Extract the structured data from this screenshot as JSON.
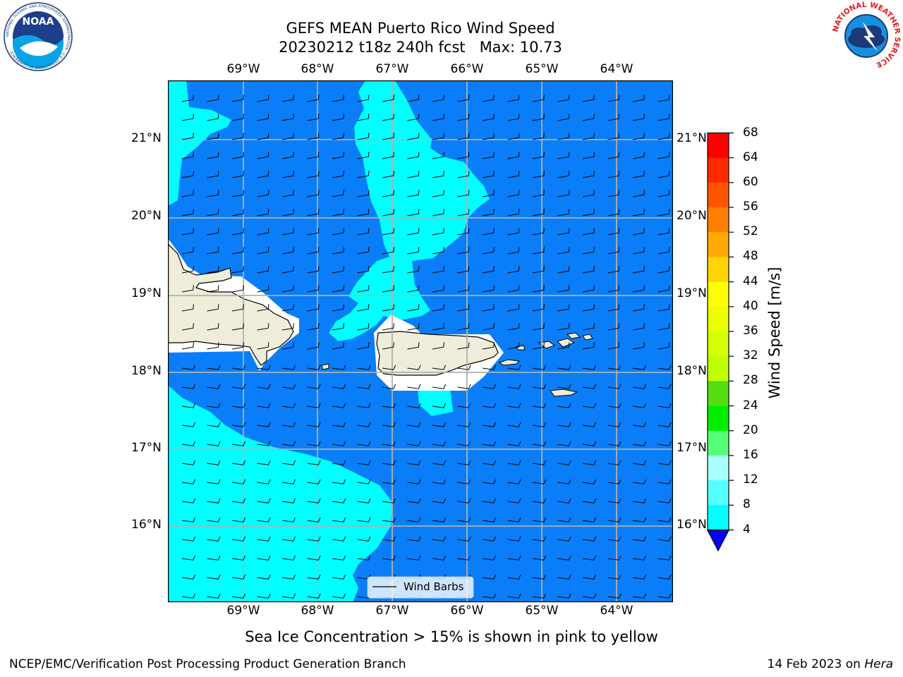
{
  "header": {
    "title_line1": "GEFS MEAN Puerto Rico Wind Speed",
    "title_line2": "20230212 t18z 240h fcst   Max: 10.73",
    "left_logo": "NOAA",
    "left_logo_ring_text": "NATIONAL OCEANIC AND ATMOSPHERIC ADMINISTRATION · U.S. DEPARTMENT OF COMMERCE",
    "right_logo_ring_text": "NATIONAL WEATHER SERVICE"
  },
  "map": {
    "lon_labels": [
      "69°W",
      "68°W",
      "67°W",
      "66°W",
      "65°W",
      "64°W"
    ],
    "lat_labels": [
      "21°N",
      "20°N",
      "19°N",
      "18°N",
      "17°N",
      "16°N"
    ],
    "legend_label": "Wind Barbs",
    "colors": {
      "ocean_low": "#0a7ef8",
      "ocean_mid": "#00ffff",
      "land": "#efedda",
      "grid": "#b0b0b0"
    }
  },
  "colorbar": {
    "label": "Wind Speed [m/s]",
    "ticks": [
      "68",
      "64",
      "60",
      "56",
      "52",
      "48",
      "44",
      "40",
      "36",
      "32",
      "28",
      "24",
      "20",
      "16",
      "12",
      "8",
      "4"
    ],
    "colors": [
      "#ff0000",
      "#ff2a00",
      "#ff5500",
      "#ff7f00",
      "#ffaa00",
      "#ffd400",
      "#ffff00",
      "#eaff00",
      "#d4ff00",
      "#bfff00",
      "#55dd11",
      "#00ee00",
      "#55ff77",
      "#aaffff",
      "#55ffff",
      "#00ffff",
      "#0a7ef8"
    ],
    "extend_color": "#0000ff"
  },
  "subtitle": "Sea Ice Concentration > 15% is shown in pink to yellow",
  "footer": {
    "left": "NCEP/EMC/Verification Post Processing Product Generation Branch",
    "right_date": "14 Feb 2023 on ",
    "right_machine": "Hera"
  }
}
